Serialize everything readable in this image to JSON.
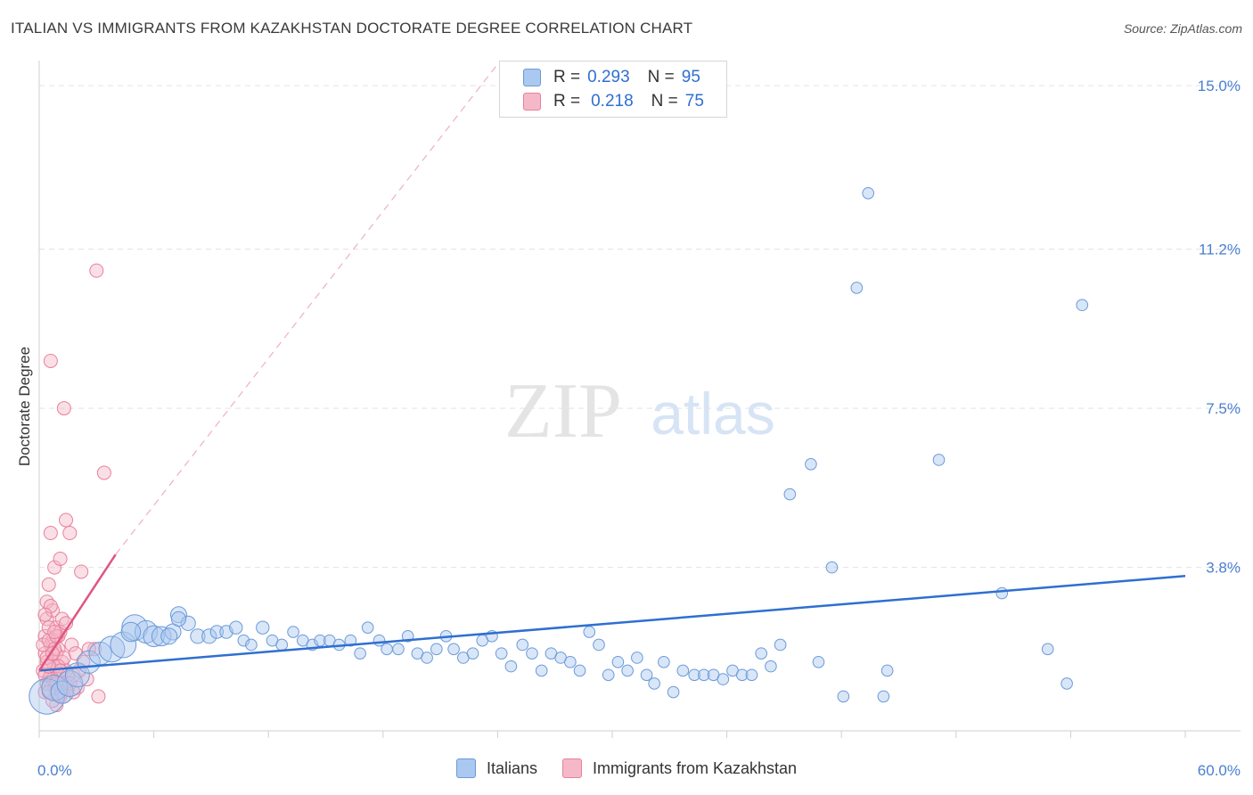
{
  "title": "ITALIAN VS IMMIGRANTS FROM KAZAKHSTAN DOCTORATE DEGREE CORRELATION CHART",
  "source": "Source: ZipAtlas.com",
  "watermark": {
    "zip": "ZIP",
    "atlas": "atlas"
  },
  "legend": {
    "r_label": "R =",
    "n_label": "N =",
    "series": [
      {
        "name": "Italians",
        "r": "0.293",
        "n": "95"
      },
      {
        "name": "Immigrants from Kazakhstan",
        "r": "0.218",
        "n": "75"
      }
    ]
  },
  "colors": {
    "italians_fill": "#aac8f0",
    "italians_stroke": "#6a9ad8",
    "italians_line": "#2f6fd0",
    "kaz_fill": "#f5b8c8",
    "kaz_stroke": "#e8809c",
    "kaz_line": "#e05580"
  },
  "chart_data": {
    "type": "scatter",
    "title": "ITALIAN VS IMMIGRANTS FROM KAZAKHSTAN DOCTORATE DEGREE CORRELATION CHART",
    "xlabel": "",
    "ylabel": "Doctorate Degree",
    "xlim": [
      0,
      60
    ],
    "ylim": [
      0,
      15.5
    ],
    "x_tick_labels": [
      "0.0%",
      "60.0%"
    ],
    "y_ticks": [
      3.8,
      7.5,
      11.2,
      15.0
    ],
    "y_tick_labels": [
      "3.8%",
      "7.5%",
      "11.2%",
      "15.0%"
    ],
    "grid": true,
    "series": [
      {
        "name": "Italians",
        "points": [
          [
            0.4,
            0.8,
            2.2
          ],
          [
            0.8,
            1.0,
            1.6
          ],
          [
            1.2,
            0.9,
            1.4
          ],
          [
            1.6,
            1.1,
            1.6
          ],
          [
            2.0,
            1.3,
            1.5
          ],
          [
            2.6,
            1.6,
            1.4
          ],
          [
            3.2,
            1.8,
            1.4
          ],
          [
            3.8,
            1.9,
            1.6
          ],
          [
            4.4,
            2.0,
            1.6
          ],
          [
            5.0,
            2.4,
            1.6
          ],
          [
            5.6,
            2.3,
            1.4
          ],
          [
            6.0,
            2.2,
            1.3
          ],
          [
            6.4,
            2.2,
            1.2
          ],
          [
            7.0,
            2.3,
            1.0
          ],
          [
            7.3,
            2.7,
            1.0
          ],
          [
            7.8,
            2.5,
            0.9
          ],
          [
            8.3,
            2.2,
            0.9
          ],
          [
            8.9,
            2.2,
            0.9
          ],
          [
            9.3,
            2.3,
            0.8
          ],
          [
            9.8,
            2.3,
            0.8
          ],
          [
            10.3,
            2.4,
            0.8
          ],
          [
            10.7,
            2.1,
            0.7
          ],
          [
            11.1,
            2.0,
            0.7
          ],
          [
            11.7,
            2.4,
            0.8
          ],
          [
            12.2,
            2.1,
            0.7
          ],
          [
            12.7,
            2.0,
            0.7
          ],
          [
            13.3,
            2.3,
            0.7
          ],
          [
            13.8,
            2.1,
            0.7
          ],
          [
            14.3,
            2.0,
            0.7
          ],
          [
            14.7,
            2.1,
            0.7
          ],
          [
            15.2,
            2.1,
            0.7
          ],
          [
            15.7,
            2.0,
            0.7
          ],
          [
            16.3,
            2.1,
            0.7
          ],
          [
            16.8,
            1.8,
            0.7
          ],
          [
            17.2,
            2.4,
            0.7
          ],
          [
            17.8,
            2.1,
            0.7
          ],
          [
            18.2,
            1.9,
            0.7
          ],
          [
            18.8,
            1.9,
            0.7
          ],
          [
            19.3,
            2.2,
            0.7
          ],
          [
            19.8,
            1.8,
            0.7
          ],
          [
            20.3,
            1.7,
            0.7
          ],
          [
            20.8,
            1.9,
            0.7
          ],
          [
            21.3,
            2.2,
            0.7
          ],
          [
            21.7,
            1.9,
            0.7
          ],
          [
            22.2,
            1.7,
            0.7
          ],
          [
            22.7,
            1.8,
            0.7
          ],
          [
            23.2,
            2.1,
            0.7
          ],
          [
            23.7,
            2.2,
            0.7
          ],
          [
            24.2,
            1.8,
            0.7
          ],
          [
            24.7,
            1.5,
            0.7
          ],
          [
            25.3,
            2.0,
            0.7
          ],
          [
            25.8,
            1.8,
            0.7
          ],
          [
            26.3,
            1.4,
            0.7
          ],
          [
            26.8,
            1.8,
            0.7
          ],
          [
            27.3,
            1.7,
            0.7
          ],
          [
            27.8,
            1.6,
            0.7
          ],
          [
            28.3,
            1.4,
            0.7
          ],
          [
            28.8,
            2.3,
            0.7
          ],
          [
            29.3,
            2.0,
            0.7
          ],
          [
            29.8,
            1.3,
            0.7
          ],
          [
            30.3,
            1.6,
            0.7
          ],
          [
            30.8,
            1.4,
            0.7
          ],
          [
            31.3,
            1.7,
            0.7
          ],
          [
            31.8,
            1.3,
            0.7
          ],
          [
            32.2,
            1.1,
            0.7
          ],
          [
            32.7,
            1.6,
            0.7
          ],
          [
            33.2,
            0.9,
            0.7
          ],
          [
            33.7,
            1.4,
            0.7
          ],
          [
            34.3,
            1.3,
            0.7
          ],
          [
            34.8,
            1.3,
            0.7
          ],
          [
            35.3,
            1.3,
            0.7
          ],
          [
            35.8,
            1.2,
            0.7
          ],
          [
            36.3,
            1.4,
            0.7
          ],
          [
            36.8,
            1.3,
            0.7
          ],
          [
            37.3,
            1.3,
            0.7
          ],
          [
            37.8,
            1.8,
            0.7
          ],
          [
            38.3,
            1.5,
            0.7
          ],
          [
            38.8,
            2.0,
            0.7
          ],
          [
            39.3,
            5.5,
            0.7
          ],
          [
            40.4,
            6.2,
            0.7
          ],
          [
            40.8,
            1.6,
            0.7
          ],
          [
            41.5,
            3.8,
            0.7
          ],
          [
            42.1,
            0.8,
            0.7
          ],
          [
            42.8,
            10.3,
            0.7
          ],
          [
            43.4,
            12.5,
            0.7
          ],
          [
            44.2,
            0.8,
            0.7
          ],
          [
            44.4,
            1.4,
            0.7
          ],
          [
            47.1,
            6.3,
            0.7
          ],
          [
            50.4,
            3.2,
            0.7
          ],
          [
            52.8,
            1.9,
            0.7
          ],
          [
            53.8,
            1.1,
            0.7
          ],
          [
            54.6,
            9.9,
            0.7
          ],
          [
            4.8,
            2.3,
            1.2
          ],
          [
            6.8,
            2.2,
            1.0
          ],
          [
            7.3,
            2.6,
            0.9
          ]
        ]
      },
      {
        "name": "Immigrants from Kazakhstan",
        "points": [
          [
            0.2,
            1.4
          ],
          [
            0.3,
            1.8
          ],
          [
            0.3,
            2.2
          ],
          [
            0.4,
            2.6
          ],
          [
            0.4,
            3.0
          ],
          [
            0.5,
            1.2
          ],
          [
            0.5,
            3.4
          ],
          [
            0.6,
            4.6
          ],
          [
            0.6,
            2.0
          ],
          [
            0.7,
            1.6
          ],
          [
            0.7,
            2.8
          ],
          [
            0.8,
            3.8
          ],
          [
            0.8,
            1.0
          ],
          [
            0.9,
            2.4
          ],
          [
            0.9,
            1.8
          ],
          [
            1.0,
            1.2
          ],
          [
            1.0,
            2.2
          ],
          [
            1.1,
            4.0
          ],
          [
            1.1,
            0.8
          ],
          [
            1.2,
            2.6
          ],
          [
            1.2,
            1.6
          ],
          [
            1.3,
            7.5
          ],
          [
            1.4,
            4.9
          ],
          [
            1.4,
            1.4
          ],
          [
            1.5,
            1.0
          ],
          [
            1.6,
            4.6
          ],
          [
            1.7,
            2.0
          ],
          [
            1.8,
            1.3
          ],
          [
            1.9,
            1.8
          ],
          [
            2.0,
            1.0
          ],
          [
            2.2,
            3.7
          ],
          [
            2.3,
            1.6
          ],
          [
            2.5,
            1.2
          ],
          [
            2.9,
            1.9
          ],
          [
            3.0,
            10.7
          ],
          [
            3.1,
            0.8
          ],
          [
            3.4,
            6.0
          ],
          [
            0.3,
            0.9
          ],
          [
            0.4,
            1.1
          ],
          [
            0.5,
            2.4
          ],
          [
            0.6,
            2.9
          ],
          [
            0.7,
            2.1
          ],
          [
            0.8,
            1.5
          ],
          [
            0.9,
            0.6
          ],
          [
            1.0,
            1.9
          ],
          [
            1.1,
            2.3
          ],
          [
            1.2,
            0.9
          ],
          [
            1.3,
            1.7
          ],
          [
            1.4,
            2.5
          ],
          [
            1.5,
            1.3
          ],
          [
            0.2,
            2.0
          ],
          [
            0.3,
            2.7
          ],
          [
            0.4,
            1.6
          ],
          [
            0.5,
            2.1
          ],
          [
            0.6,
            1.3
          ],
          [
            0.7,
            0.7
          ],
          [
            0.8,
            1.9
          ],
          [
            0.9,
            2.2
          ],
          [
            1.0,
            1.5
          ],
          [
            1.2,
            1.0
          ],
          [
            0.6,
            8.6
          ],
          [
            0.4,
            1.7
          ],
          [
            0.5,
            0.9
          ],
          [
            0.7,
            1.2
          ],
          [
            0.8,
            2.3
          ],
          [
            0.9,
            1.1
          ],
          [
            1.1,
            1.4
          ],
          [
            1.3,
            0.8
          ],
          [
            1.6,
            1.1
          ],
          [
            1.8,
            0.9
          ],
          [
            0.3,
            1.3
          ],
          [
            0.5,
            1.5
          ],
          [
            0.7,
            1.8
          ],
          [
            2.1,
            1.4
          ],
          [
            2.6,
            1.9
          ]
        ]
      }
    ],
    "trend_lines": [
      {
        "name": "Italians",
        "x": [
          0,
          60
        ],
        "y": [
          1.4,
          3.6
        ],
        "style": "solid"
      },
      {
        "name": "Immigrants from Kazakhstan",
        "solid_x": [
          0,
          4
        ],
        "solid_y": [
          1.4,
          4.1
        ],
        "dashed_x": [
          4,
          24
        ],
        "dashed_y": [
          4.1,
          15.5
        ],
        "style": "solid+dashed"
      }
    ]
  }
}
